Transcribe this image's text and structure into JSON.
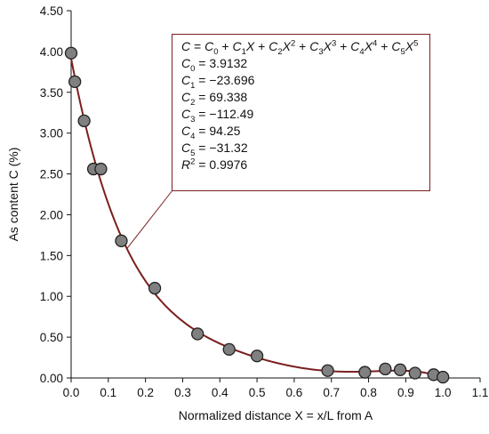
{
  "chart_data": {
    "type": "scatter",
    "xlabel": "Normalized distance X = x/L from A",
    "ylabel": "As content C (%)",
    "xlim": [
      0.0,
      1.1
    ],
    "ylim": [
      0.0,
      4.5
    ],
    "x_ticks": [
      "0.0",
      "0.1",
      "0.2",
      "0.3",
      "0.4",
      "0.5",
      "0.6",
      "0.7",
      "0.8",
      "0.9",
      "1.0",
      "1.1"
    ],
    "y_ticks": [
      "0.00",
      "0.50",
      "1.00",
      "1.50",
      "2.00",
      "2.50",
      "3.00",
      "3.50",
      "4.00",
      "4.50"
    ],
    "grid": false,
    "series": [
      {
        "kind": "points",
        "color": "#808080",
        "edge_color": "#222222",
        "points": [
          {
            "x": 0.0,
            "y": 3.98
          },
          {
            "x": 0.01,
            "y": 3.63
          },
          {
            "x": 0.035,
            "y": 3.15
          },
          {
            "x": 0.06,
            "y": 2.56
          },
          {
            "x": 0.08,
            "y": 2.56
          },
          {
            "x": 0.135,
            "y": 1.68
          },
          {
            "x": 0.225,
            "y": 1.1
          },
          {
            "x": 0.34,
            "y": 0.54
          },
          {
            "x": 0.425,
            "y": 0.35
          },
          {
            "x": 0.5,
            "y": 0.27
          },
          {
            "x": 0.69,
            "y": 0.09
          },
          {
            "x": 0.79,
            "y": 0.07
          },
          {
            "x": 0.845,
            "y": 0.11
          },
          {
            "x": 0.885,
            "y": 0.1
          },
          {
            "x": 0.925,
            "y": 0.06
          },
          {
            "x": 0.975,
            "y": 0.04
          },
          {
            "x": 1.0,
            "y": 0.01
          }
        ]
      },
      {
        "kind": "fit-curve",
        "color": "#7b1f1f",
        "coefficients": {
          "C0": 3.9132,
          "C1": -23.696,
          "C2": 69.338,
          "C3": -112.49,
          "C4": 94.25,
          "C5": -31.32
        },
        "domain": [
          0.0,
          1.0
        ]
      }
    ],
    "annotation": {
      "equation_terms": [
        {
          "italic": "C",
          "text": " = "
        },
        {
          "italic": "C",
          "sub": "0",
          "text": " + "
        },
        {
          "italic": "C",
          "sub": "1",
          "italic2": "X",
          "text": " + "
        },
        {
          "italic": "C",
          "sub": "2",
          "italic2": "X",
          "sup": "2",
          "text": " + "
        },
        {
          "italic": "C",
          "sub": "3",
          "italic2": "X",
          "sup": "3",
          "text": " + "
        },
        {
          "italic": "C",
          "sub": "4",
          "italic2": "X",
          "sup": "4",
          "text": " + "
        },
        {
          "italic": "C",
          "sub": "5",
          "italic2": "X",
          "sup": "5",
          "text": ""
        }
      ],
      "coefficients": [
        {
          "name": "C",
          "sub": "0",
          "value": "3.9132"
        },
        {
          "name": "C",
          "sub": "1",
          "value": "−23.696"
        },
        {
          "name": "C",
          "sub": "2",
          "value": "69.338"
        },
        {
          "name": "C",
          "sub": "3",
          "value": "−112.49"
        },
        {
          "name": "C",
          "sub": "4",
          "value": "94.25"
        },
        {
          "name": "C",
          "sub": "5",
          "value": "−31.32"
        }
      ],
      "r_squared": {
        "name": "R",
        "sup": "2",
        "value": "0.9976"
      },
      "equals": " = ",
      "border_color": "#7b1f1f"
    }
  }
}
